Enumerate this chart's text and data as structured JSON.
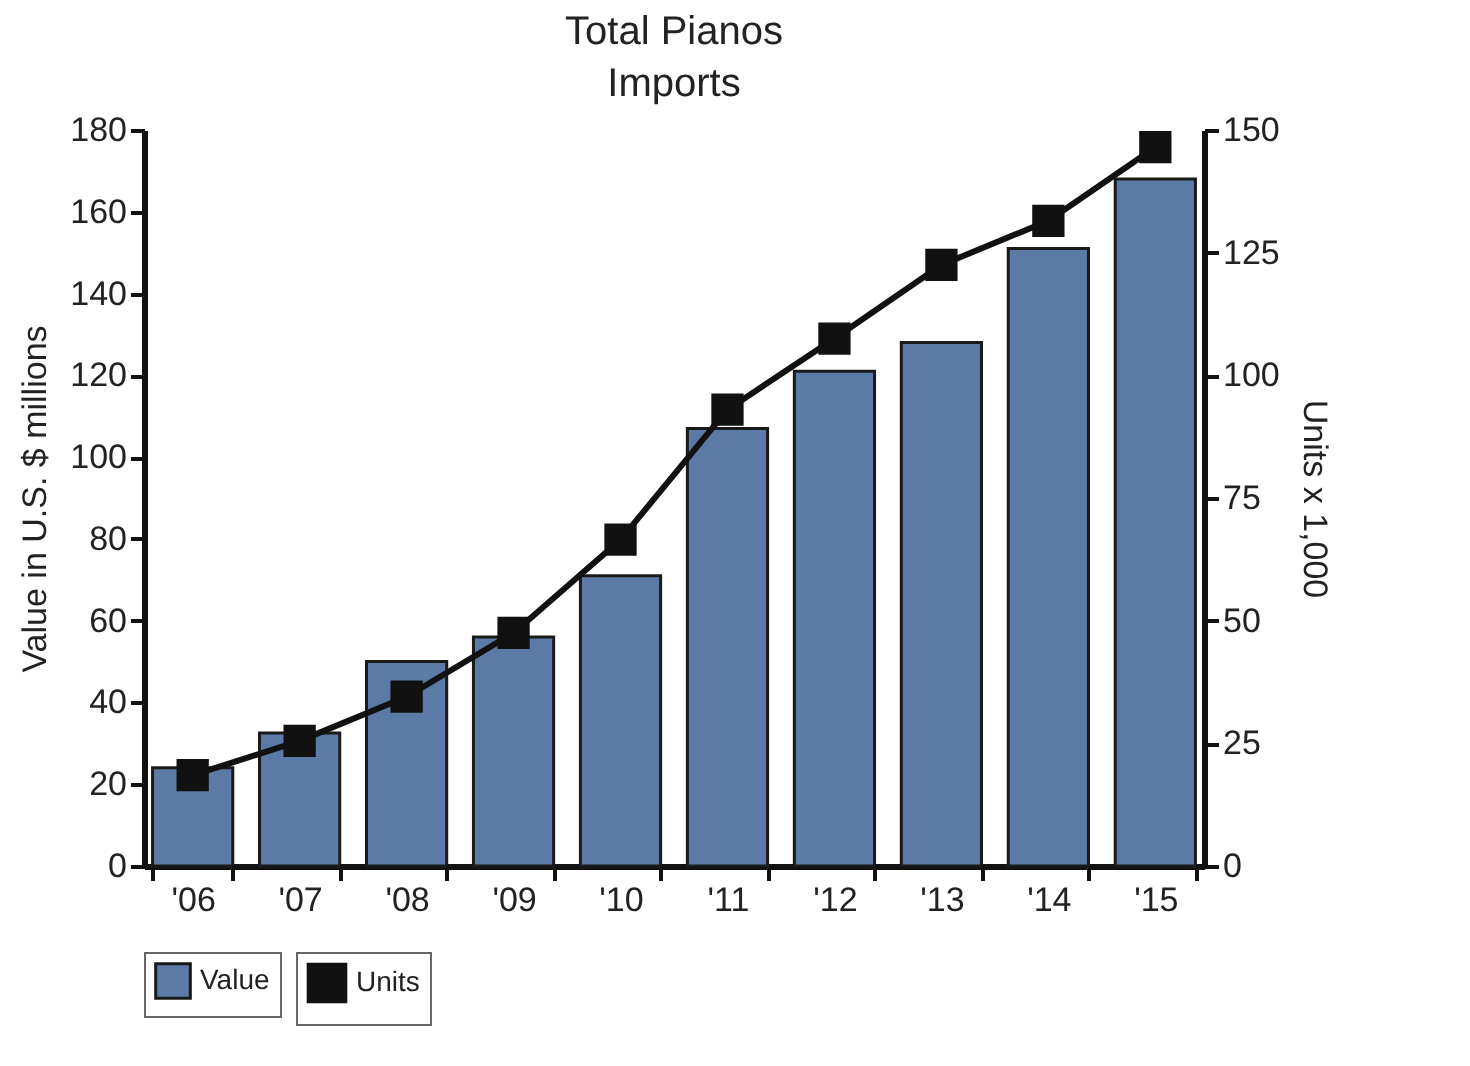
{
  "chart_data": {
    "type": "bar",
    "title": "Total Pianos Imports",
    "ylabel": "Value in U.S. $ millions",
    "y2label": "Units x 1,000",
    "categories": [
      "'06",
      "'07",
      "'08",
      "'09",
      "'10",
      "'11",
      "'12",
      "'13",
      "'14",
      "'15"
    ],
    "series": [
      {
        "name": "Value",
        "color": "#5b7aa6",
        "values": [
          24,
          32.5,
          50,
          56,
          71,
          107,
          121,
          128,
          151,
          168
        ]
      },
      {
        "name": "Units",
        "type": "line",
        "axis": "y2",
        "color": "#111111",
        "marker": "square",
        "values": [
          18.5,
          25.5,
          34.5,
          47.5,
          66.5,
          93,
          107.5,
          122.5,
          131.5,
          146.5
        ]
      }
    ],
    "ylim": [
      0,
      180
    ],
    "yticks": [
      0,
      20,
      40,
      60,
      80,
      100,
      120,
      140,
      160,
      180
    ],
    "y2lim": [
      0,
      150
    ],
    "y2ticks": [
      0,
      25,
      50,
      75,
      100,
      125,
      150
    ],
    "grid": false,
    "legend": "bottom"
  }
}
